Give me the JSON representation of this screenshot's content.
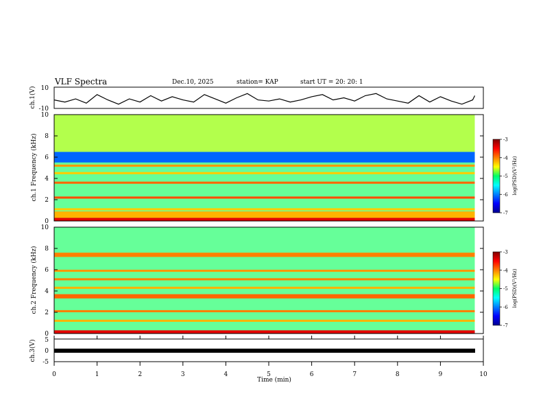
{
  "header": {
    "title": "VLF Spectra",
    "date": "Dec.10, 2025",
    "station": "station= KAP",
    "start": "start UT =   20: 20: 1"
  },
  "chart_data": [
    {
      "type": "line",
      "panel": "ch1-voltage",
      "ylabel": "ch.1(V)",
      "ylim": [
        -10,
        10
      ],
      "yticks": [
        "10",
        "-10"
      ],
      "xlim": [
        0,
        10
      ],
      "series": [
        {
          "x": [
            0,
            0.25,
            0.5,
            0.75,
            1,
            1.25,
            1.5,
            1.75,
            2,
            2.25,
            2.5,
            2.75,
            3,
            3.25,
            3.5,
            3.75,
            4,
            4.25,
            4.5,
            4.75,
            5,
            5.25,
            5.5,
            5.75,
            6,
            6.25,
            6.5,
            6.75,
            7,
            7.25,
            7.5,
            7.75,
            8,
            8.25,
            8.5,
            8.75,
            9,
            9.25,
            9.5,
            9.75,
            9.8
          ],
          "values": [
            -2,
            -4,
            -1,
            -5,
            3,
            -2,
            -6,
            -1,
            -4,
            2,
            -3,
            1,
            -2,
            -4,
            3,
            -1,
            -5,
            0,
            4,
            -2,
            -3,
            -1,
            -4,
            -2,
            1,
            3,
            -2,
            0,
            -3,
            2,
            4,
            -1,
            -3,
            -5,
            2,
            -4,
            1,
            -3,
            -6,
            -2,
            2
          ]
        }
      ]
    },
    {
      "type": "heatmap",
      "panel": "ch1-spectrogram",
      "ylabel": "ch.1 Frequency (kHz)",
      "ylim": [
        0,
        10
      ],
      "yticks": [
        "0",
        "2",
        "4",
        "6",
        "8",
        "10"
      ],
      "xlim": [
        0,
        10
      ],
      "colorbar": {
        "label": "log(PSD)(V²/Hz)",
        "range": [
          -7,
          -3
        ],
        "ticks": [
          "-3",
          "-4",
          "-5",
          "-6",
          "-7"
        ]
      },
      "bands_khz": [
        {
          "f0": 0.0,
          "f1": 0.3,
          "level": -3.4
        },
        {
          "f0": 0.3,
          "f1": 0.9,
          "level": -4.2
        },
        {
          "f0": 1.0,
          "f1": 1.2,
          "level": -4.3
        },
        {
          "f0": 2.1,
          "f1": 2.3,
          "level": -3.8
        },
        {
          "f0": 3.5,
          "f1": 3.7,
          "level": -3.9
        },
        {
          "f0": 4.4,
          "f1": 4.6,
          "level": -4.3
        },
        {
          "f0": 5.1,
          "f1": 5.3,
          "level": -4.1
        },
        {
          "f0": 5.5,
          "f1": 6.5,
          "level": -6.1
        },
        {
          "f0": 6.5,
          "f1": 10.0,
          "level": -4.8
        }
      ]
    },
    {
      "type": "heatmap",
      "panel": "ch2-spectrogram",
      "ylabel": "ch.2 Frequency (kHz)",
      "ylim": [
        0,
        10
      ],
      "yticks": [
        "0",
        "2",
        "4",
        "6",
        "8",
        "10"
      ],
      "xlim": [
        0,
        10
      ],
      "colorbar": {
        "label": "log(PSD)(V²/Hz)",
        "range": [
          -7,
          -3
        ],
        "ticks": [
          "-3",
          "-4",
          "-5",
          "-6",
          "-7"
        ]
      },
      "bands_khz": [
        {
          "f0": 0.0,
          "f1": 0.3,
          "level": -3.4
        },
        {
          "f0": 1.1,
          "f1": 1.3,
          "level": -4.2
        },
        {
          "f0": 2.0,
          "f1": 2.2,
          "level": -4.0
        },
        {
          "f0": 3.3,
          "f1": 3.7,
          "level": -3.9
        },
        {
          "f0": 4.2,
          "f1": 4.4,
          "level": -4.2
        },
        {
          "f0": 5.0,
          "f1": 5.2,
          "level": -4.0
        },
        {
          "f0": 5.8,
          "f1": 6.0,
          "level": -4.1
        },
        {
          "f0": 7.2,
          "f1": 7.6,
          "level": -4.0
        }
      ]
    },
    {
      "type": "line",
      "panel": "ch3-voltage",
      "ylabel": "ch.3(V)",
      "ylim": [
        -5,
        5
      ],
      "yticks": [
        "5",
        "0",
        "-5"
      ],
      "xlim": [
        0,
        10
      ],
      "xlabel": "Time (min)",
      "xticks": [
        "0",
        "1",
        "2",
        "3",
        "4",
        "5",
        "6",
        "7",
        "8",
        "9",
        "10"
      ],
      "series": [
        {
          "x": [
            0,
            9.8
          ],
          "values": [
            0,
            0
          ]
        }
      ]
    }
  ]
}
